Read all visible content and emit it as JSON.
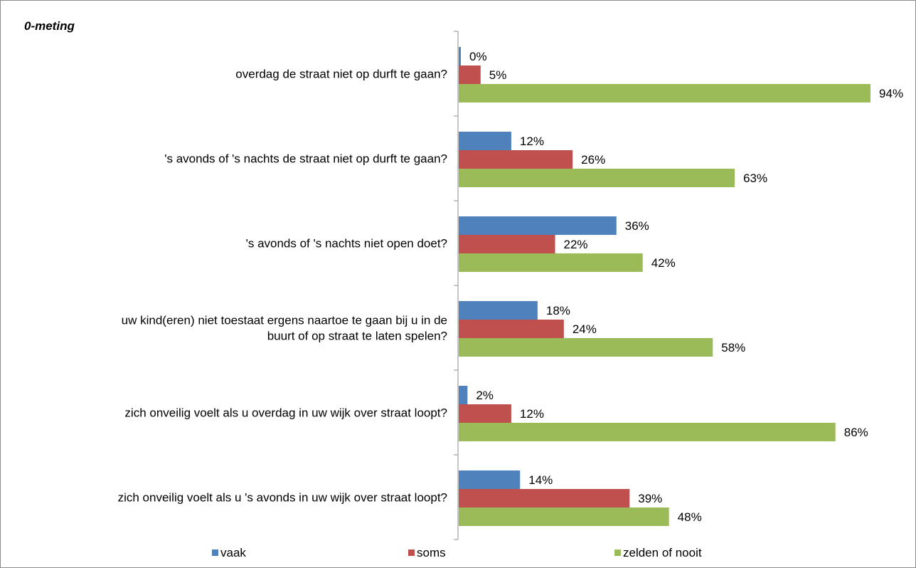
{
  "chart_data": {
    "type": "bar",
    "orientation": "horizontal",
    "title": "0-meting",
    "categories": [
      "overdag de straat niet op durft te gaan?",
      "'s avonds of 's nachts de straat niet op durft te gaan?",
      "'s avonds of 's nachts niet open doet?",
      "uw kind(eren) niet toestaat ergens naartoe te gaan bij u in de buurt of op straat te laten spelen?",
      "zich onveilig voelt als u overdag in uw wijk over straat loopt?",
      "zich onveilig voelt als u 's avonds in uw wijk over straat loopt?"
    ],
    "category_lines": [
      [
        "overdag de straat niet op durft te gaan?"
      ],
      [
        "'s avonds of 's nachts de straat niet op durft te gaan?"
      ],
      [
        "'s avonds of 's nachts niet open doet?"
      ],
      [
        "uw kind(eren) niet toestaat ergens naartoe te gaan bij u in de",
        "buurt of op straat te laten spelen?"
      ],
      [
        "zich onveilig voelt als u overdag in uw wijk over straat loopt?"
      ],
      [
        "zich onveilig voelt als u 's avonds in uw wijk over straat loopt?"
      ]
    ],
    "series": [
      {
        "name": "vaak",
        "color": "#4f81bd",
        "values": [
          0,
          12,
          36,
          18,
          2,
          14
        ]
      },
      {
        "name": "soms",
        "color": "#c0504d",
        "values": [
          5,
          26,
          22,
          24,
          12,
          39
        ]
      },
      {
        "name": "zelden of nooit",
        "color": "#9bbb59",
        "values": [
          94,
          63,
          42,
          58,
          86,
          48
        ]
      }
    ],
    "value_suffix": "%",
    "xlim": [
      0,
      100
    ],
    "grid": false,
    "legend": "bottom"
  }
}
